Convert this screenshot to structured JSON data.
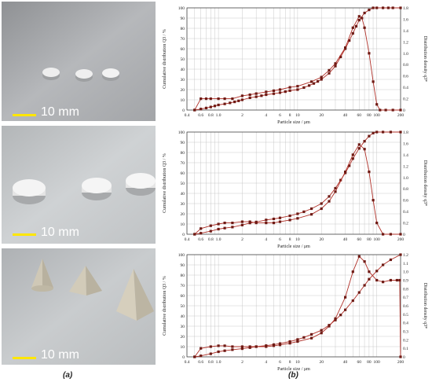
{
  "panel_labels": {
    "a": "(a)",
    "b": "(b)"
  },
  "photos": [
    {
      "scale_label": "10 mm",
      "shape": "small-discs"
    },
    {
      "scale_label": "10 mm",
      "shape": "large-discs"
    },
    {
      "scale_label": "10 mm",
      "shape": "pyramids"
    }
  ],
  "colors": {
    "series": "#b03028",
    "marker": "#6e1a14",
    "grid": "#bdbdbd",
    "scale_bar": "#ffe600"
  },
  "chart_data": [
    {
      "type": "line",
      "xscale": "log",
      "xlim": [
        0.4,
        200
      ],
      "xticks": [
        0.4,
        0.6,
        0.8,
        1.0,
        2,
        4,
        6,
        8,
        10,
        20,
        40,
        60,
        80,
        100,
        200
      ],
      "xtick_labels": [
        "0.4",
        "0.6",
        "0.8",
        "1.0",
        "2",
        "4",
        "6",
        "8",
        "10",
        "20",
        "40",
        "60",
        "80",
        "100",
        "200"
      ],
      "xlabel": "Particle size / μm",
      "ylabel_left": "Cumulative distribution Q3 / %",
      "ylabel_right": "Distribution density q3*",
      "ylim_left": [
        0,
        100
      ],
      "ylim_right": [
        0,
        1.8
      ],
      "yticks_left": [
        "0",
        "10",
        "20",
        "30",
        "40",
        "50",
        "60",
        "70",
        "80",
        "90",
        "100"
      ],
      "yticks_right": [
        "0",
        "0.2",
        "0.4",
        "0.6",
        "0.8",
        "1.0",
        "1.2",
        "1.4",
        "1.6",
        "1.8"
      ],
      "grid": true,
      "series": [
        {
          "axis": "left",
          "x": [
            0.5,
            0.6,
            0.7,
            0.8,
            0.9,
            1.0,
            1.2,
            1.4,
            1.6,
            1.8,
            2,
            2.5,
            3,
            3.5,
            4,
            5,
            6,
            7,
            8,
            10,
            12,
            14,
            16,
            18,
            20,
            25,
            30,
            35,
            40,
            45,
            50,
            55,
            60,
            70,
            80,
            90,
            100,
            120,
            140,
            160,
            200
          ],
          "y": [
            0,
            1,
            2,
            3,
            4,
            5,
            6,
            7,
            8,
            9,
            10,
            12,
            13,
            14,
            15,
            16,
            17,
            18,
            19,
            20,
            22,
            24,
            26,
            28,
            30,
            36,
            43,
            52,
            60,
            68,
            75,
            82,
            88,
            95,
            98,
            100,
            100,
            100,
            100,
            100,
            100
          ]
        },
        {
          "axis": "right",
          "x": [
            0.5,
            0.6,
            0.7,
            0.8,
            1.0,
            1.2,
            1.5,
            2,
            2.5,
            3,
            4,
            5,
            6,
            8,
            10,
            15,
            20,
            25,
            30,
            40,
            50,
            60,
            65,
            70,
            80,
            90,
            100,
            110,
            130,
            160,
            200
          ],
          "y": [
            0,
            0.2,
            0.2,
            0.2,
            0.2,
            0.2,
            0.2,
            0.25,
            0.27,
            0.29,
            0.32,
            0.34,
            0.36,
            0.4,
            0.42,
            0.5,
            0.58,
            0.7,
            0.82,
            1.1,
            1.45,
            1.65,
            1.62,
            1.45,
            1.0,
            0.5,
            0.1,
            0,
            0,
            0,
            0
          ]
        }
      ]
    },
    {
      "type": "line",
      "xscale": "log",
      "xlim": [
        0.4,
        200
      ],
      "xticks": [
        0.4,
        0.6,
        0.8,
        1.0,
        2,
        4,
        6,
        8,
        10,
        20,
        40,
        60,
        80,
        100,
        200
      ],
      "xtick_labels": [
        "0.4",
        "0.6",
        "0.8",
        "1.0",
        "2",
        "4",
        "6",
        "8",
        "10",
        "20",
        "40",
        "60",
        "80",
        "100",
        "200"
      ],
      "xlabel": "Particle size / μm",
      "ylabel_left": "Cumulative distribution Q3 / %",
      "ylabel_right": "Distribution density q3*",
      "ylim_left": [
        0,
        100
      ],
      "ylim_right": [
        0,
        1.8
      ],
      "yticks_left": [
        "0",
        "10",
        "20",
        "30",
        "40",
        "50",
        "60",
        "70",
        "80",
        "90",
        "100"
      ],
      "yticks_right": [
        "0",
        "0.2",
        "0.4",
        "0.6",
        "0.8",
        "1.0",
        "1.2",
        "1.4",
        "1.6",
        "1.8"
      ],
      "grid": true,
      "series": [
        {
          "axis": "left",
          "x": [
            0.5,
            0.6,
            0.8,
            1.0,
            1.2,
            1.5,
            2,
            2.5,
            3,
            4,
            5,
            6,
            8,
            10,
            12,
            15,
            20,
            25,
            30,
            35,
            40,
            45,
            50,
            60,
            70,
            80,
            90,
            100,
            120,
            150,
            200
          ],
          "y": [
            0,
            1,
            3,
            5,
            6,
            7,
            9,
            11,
            12,
            14,
            15,
            16,
            18,
            20,
            22,
            25,
            30,
            37,
            45,
            53,
            60,
            67,
            74,
            84,
            91,
            96,
            99,
            100,
            100,
            100,
            100
          ]
        },
        {
          "axis": "right",
          "x": [
            0.5,
            0.6,
            0.8,
            1.0,
            1.2,
            1.5,
            2,
            2.5,
            3,
            4,
            5,
            6,
            8,
            10,
            15,
            20,
            25,
            30,
            40,
            50,
            60,
            70,
            80,
            90,
            100,
            120,
            150,
            200
          ],
          "y": [
            0,
            0.1,
            0.15,
            0.18,
            0.2,
            0.2,
            0.22,
            0.22,
            0.2,
            0.2,
            0.2,
            0.22,
            0.25,
            0.28,
            0.35,
            0.45,
            0.58,
            0.75,
            1.1,
            1.4,
            1.58,
            1.5,
            1.1,
            0.6,
            0.2,
            0,
            0,
            0
          ]
        }
      ]
    },
    {
      "type": "line",
      "xscale": "log",
      "xlim": [
        0.4,
        200
      ],
      "xticks": [
        0.4,
        0.6,
        0.8,
        1.0,
        2,
        4,
        6,
        8,
        10,
        20,
        40,
        60,
        80,
        100,
        200
      ],
      "xtick_labels": [
        "0.4",
        "0.6",
        "0.8",
        "1.0",
        "2",
        "4",
        "6",
        "8",
        "10",
        "20",
        "40",
        "60",
        "80",
        "100",
        "200"
      ],
      "xlabel": "Particle size / μm",
      "ylabel_left": "Cumulative distribution Q3 / %",
      "ylabel_right": "Distribution density q3*",
      "ylim_left": [
        0,
        100
      ],
      "ylim_right": [
        0,
        1.2
      ],
      "yticks_left": [
        "0",
        "10",
        "20",
        "30",
        "40",
        "50",
        "60",
        "70",
        "80",
        "90",
        "100"
      ],
      "yticks_right": [
        "0",
        "0.1",
        "0.2",
        "0.3",
        "0.4",
        "0.5",
        "0.6",
        "0.7",
        "0.8",
        "0.9",
        "1.0",
        "1.1",
        "1.2"
      ],
      "grid": true,
      "series": [
        {
          "axis": "left",
          "x": [
            0.5,
            0.6,
            0.8,
            1.0,
            1.2,
            1.5,
            2,
            2.5,
            3,
            4,
            5,
            6,
            8,
            10,
            12,
            15,
            20,
            25,
            30,
            35,
            40,
            50,
            60,
            70,
            80,
            100,
            120,
            150,
            200
          ],
          "y": [
            0,
            1,
            3,
            5,
            6,
            7,
            8,
            9,
            10,
            11,
            12,
            13,
            15,
            17,
            19,
            22,
            26,
            31,
            36,
            41,
            46,
            55,
            63,
            70,
            76,
            84,
            90,
            95,
            100
          ]
        },
        {
          "axis": "right",
          "x": [
            0.5,
            0.6,
            0.8,
            1.0,
            1.2,
            1.5,
            2,
            2.5,
            3,
            4,
            5,
            6,
            8,
            10,
            15,
            20,
            25,
            30,
            40,
            50,
            60,
            70,
            80,
            100,
            120,
            150,
            180,
            195,
            200
          ],
          "y": [
            0,
            0.1,
            0.12,
            0.13,
            0.13,
            0.12,
            0.12,
            0.12,
            0.12,
            0.12,
            0.13,
            0.14,
            0.16,
            0.18,
            0.22,
            0.28,
            0.36,
            0.45,
            0.7,
            1.0,
            1.18,
            1.12,
            1.0,
            0.9,
            0.88,
            0.9,
            0.9,
            0.9,
            0
          ]
        }
      ]
    }
  ]
}
